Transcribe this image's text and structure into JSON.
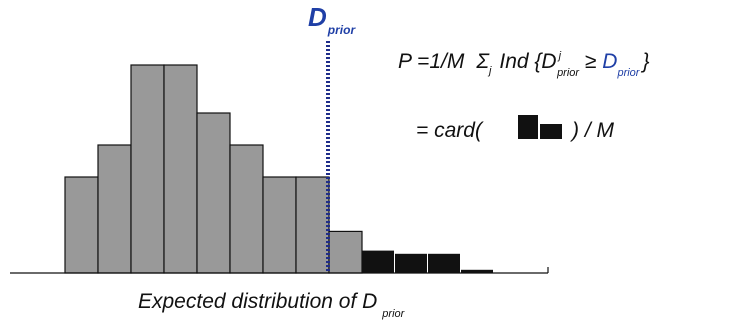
{
  "chart_data": {
    "type": "bar",
    "unit_values": [
      0,
      3,
      4,
      6.5,
      6.5,
      5,
      4,
      3,
      3,
      1.3,
      0.7,
      0.6,
      0.6,
      0.1
    ],
    "threshold_after_bar": 9,
    "colors": {
      "below_threshold": "#999999",
      "above_threshold": "#111111",
      "threshold_line": "#1f2d8a",
      "accent_text": "#1f3fa6"
    },
    "threshold_label": {
      "main": "D",
      "sub": "prior"
    },
    "xlabel": {
      "main": "Expected distribution of D",
      "sub": "prior"
    }
  },
  "formula": {
    "line1": {
      "lhs": "P =1/M",
      "sigma": "Σ",
      "sigma_sub": "j",
      "ind": "Ind {D",
      "ind_sup": "j",
      "ind_sub": "prior",
      "geq": " ≥ ",
      "rhs_main": "D",
      "rhs_sub": "prior",
      "close": "}"
    },
    "line2": {
      "prefix": "= card(",
      "icon": "black-bars-icon",
      "suffix": ") / M"
    }
  }
}
